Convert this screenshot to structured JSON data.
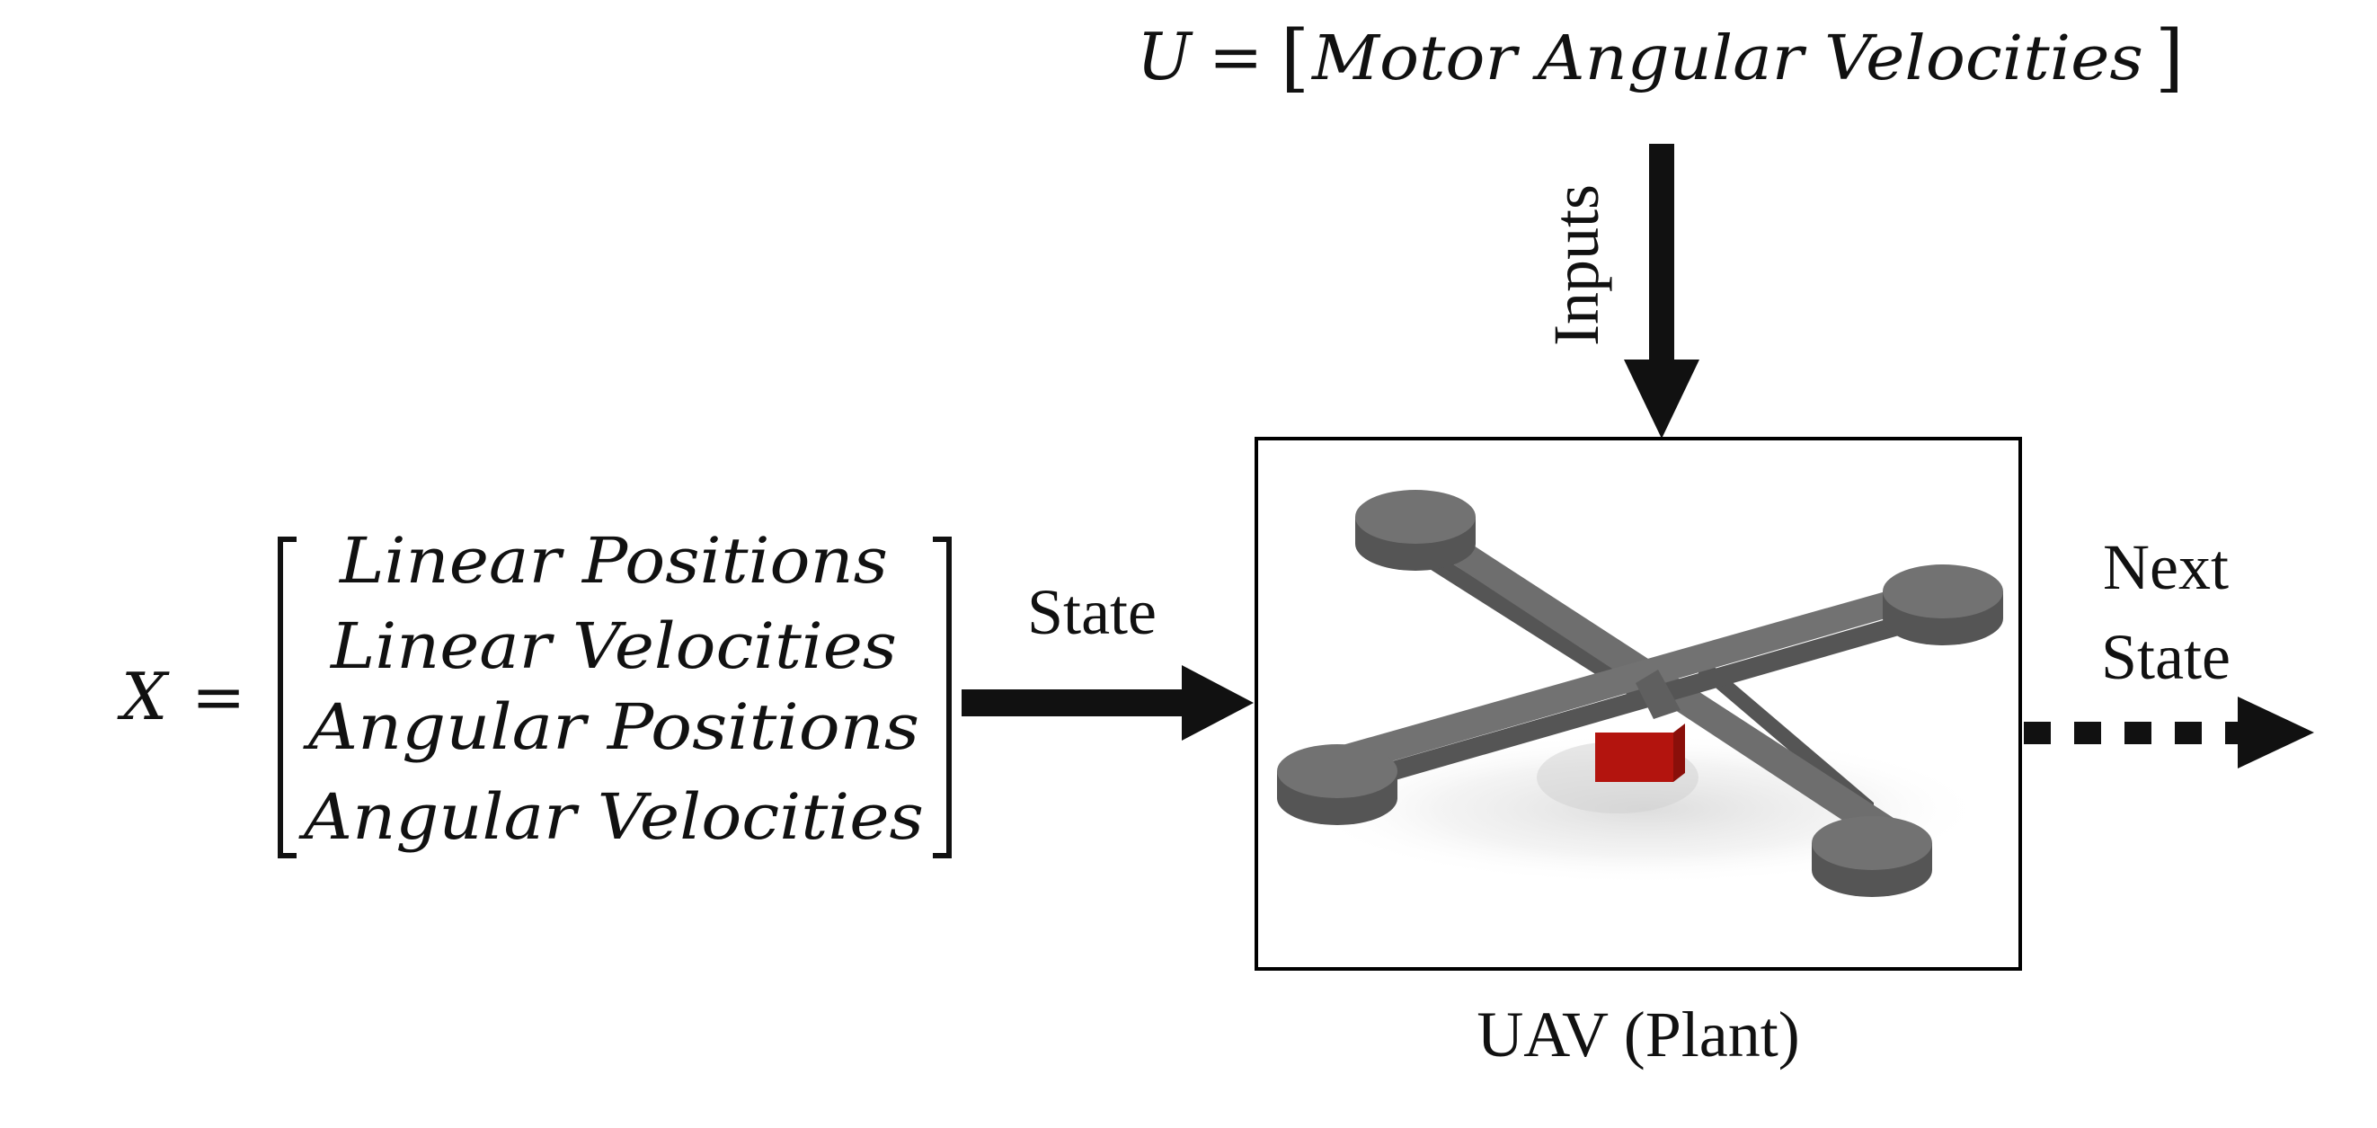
{
  "inputs_equation": {
    "variable": "U",
    "equals": "=",
    "open_bracket": "[",
    "content": "Motor Angular Velocities",
    "close_bracket": "]"
  },
  "inputs_label": "Inputs",
  "state_equation": {
    "variable": "X",
    "equals": "=",
    "rows": [
      "Linear Positions",
      "Linear Velocities",
      "Angular Positions",
      "Angular Velocities"
    ]
  },
  "state_label": "State",
  "plant_caption": "UAV (Plant)",
  "next_state_label": {
    "line1": "Next",
    "line2": "State"
  },
  "colors": {
    "ink": "#111111",
    "drone_top": "#6e6e6e",
    "drone_side": "#555555",
    "drone_body": "#b3140e",
    "box_border": "#000000"
  },
  "icons": {
    "plant_image": "quadcopter-icon"
  }
}
